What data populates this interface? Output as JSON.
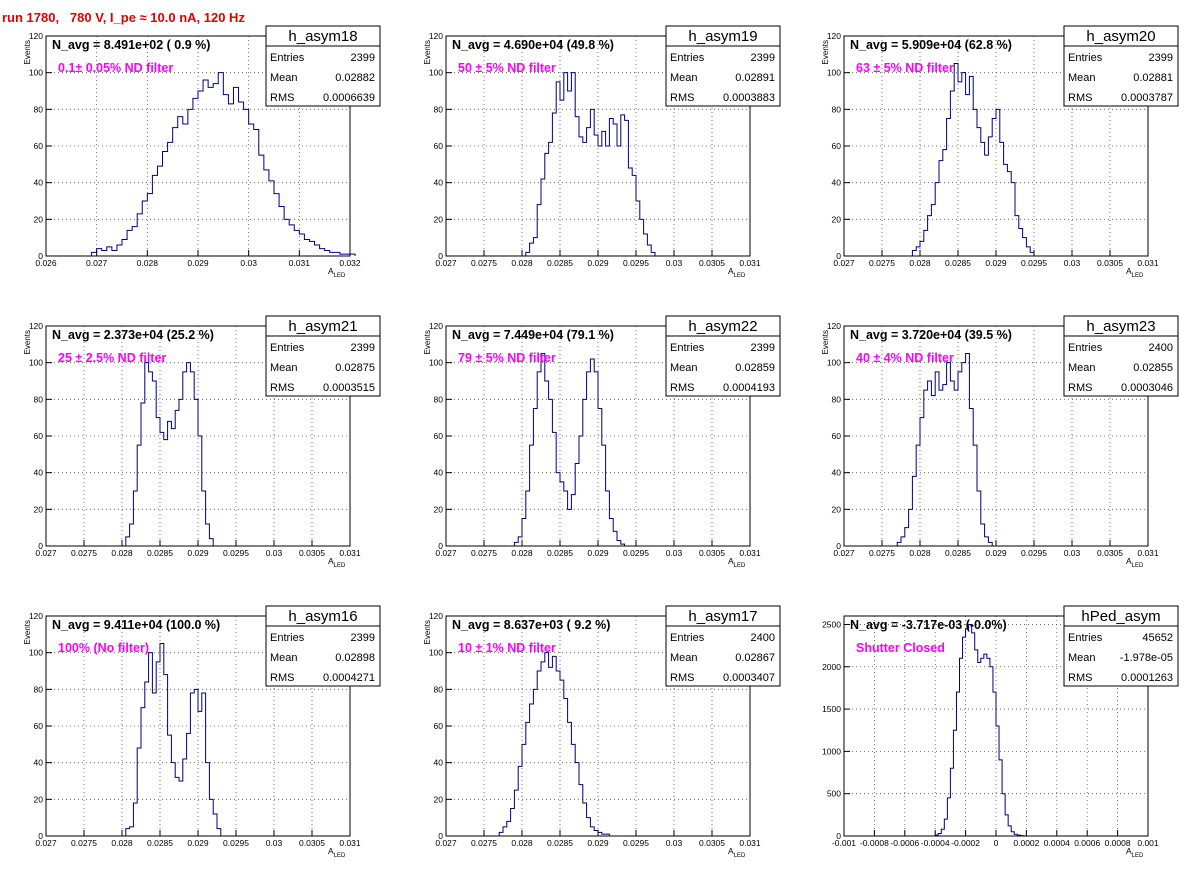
{
  "title": "run 1780,   780 V, I_pe ≈ 10.0 nA, 120 Hz",
  "colors": {
    "title": "#e00000",
    "annotation": "#ff00ff",
    "histogram": "#000080"
  },
  "chart_data": [
    {
      "type": "histogram",
      "name": "h_asym18",
      "stats": {
        "Entries": "2399",
        "Mean": "0.02882",
        "RMS": "0.0006639"
      },
      "navg": "N_avg = 8.491e+02 ( 0.9 %)",
      "note": "0.1± 0.05% ND filter",
      "xlabel": "A",
      "xlabel_sub": "LED",
      "ylabel": "Events",
      "xlim": [
        0.026,
        0.032
      ],
      "ylim": [
        0,
        120
      ],
      "xticks": [
        0.026,
        0.027,
        0.028,
        0.029,
        0.03,
        0.031,
        0.032
      ],
      "xticklabels": [
        "0.026",
        "0.027",
        "0.028",
        "0.029",
        "0.03",
        "0.031",
        "0.032"
      ],
      "yticks": [
        0,
        20,
        40,
        60,
        80,
        100,
        120
      ],
      "yticklabels": [
        "0",
        "20",
        "40",
        "60",
        "80",
        "100",
        "120"
      ],
      "x0": 0.0269,
      "bin_width": 0.0001,
      "values": [
        2,
        4,
        3,
        5,
        3,
        6,
        9,
        14,
        16,
        23,
        30,
        34,
        44,
        49,
        57,
        62,
        70,
        76,
        72,
        80,
        86,
        90,
        96,
        92,
        94,
        100,
        88,
        83,
        92,
        84,
        80,
        72,
        69,
        55,
        47,
        41,
        34,
        27,
        20,
        17,
        14,
        12,
        9,
        8,
        6,
        4,
        3,
        2,
        2,
        1,
        1,
        1
      ]
    },
    {
      "type": "histogram",
      "name": "h_asym19",
      "stats": {
        "Entries": "2399",
        "Mean": "0.02891",
        "RMS": "0.0003883"
      },
      "navg": "N_avg = 4.690e+04 (49.8 %)",
      "note": "50 ± 5% ND filter",
      "xlabel": "A",
      "xlabel_sub": "LED",
      "ylabel": "Events",
      "xlim": [
        0.027,
        0.031
      ],
      "ylim": [
        0,
        120
      ],
      "xticks": [
        0.027,
        0.0275,
        0.028,
        0.0285,
        0.029,
        0.0295,
        0.03,
        0.0305,
        0.031
      ],
      "xticklabels": [
        "0.027",
        "0.0275",
        "0.028",
        "0.0285",
        "0.029",
        "0.0295",
        "0.03",
        "0.0305",
        "0.031"
      ],
      "yticks": [
        0,
        20,
        40,
        60,
        80,
        100,
        120
      ],
      "yticklabels": [
        "0",
        "20",
        "40",
        "60",
        "80",
        "100",
        "120"
      ],
      "x0": 0.02805,
      "bin_width": 5e-05,
      "values": [
        2,
        7,
        10,
        28,
        42,
        56,
        62,
        78,
        95,
        85,
        100,
        90,
        100,
        76,
        65,
        62,
        70,
        80,
        66,
        60,
        68,
        60,
        75,
        72,
        60,
        77,
        74,
        48,
        44,
        30,
        20,
        12,
        6,
        2
      ]
    },
    {
      "type": "histogram",
      "name": "h_asym20",
      "stats": {
        "Entries": "2399",
        "Mean": "0.02881",
        "RMS": "0.0003787"
      },
      "navg": "N_avg = 5.909e+04 (62.8 %)",
      "note": "63 ± 5% ND filter",
      "xlabel": "A",
      "xlabel_sub": "LED",
      "ylabel": "Events",
      "xlim": [
        0.027,
        0.031
      ],
      "ylim": [
        0,
        120
      ],
      "xticks": [
        0.027,
        0.0275,
        0.028,
        0.0285,
        0.029,
        0.0295,
        0.03,
        0.0305,
        0.031
      ],
      "xticklabels": [
        "0.027",
        "0.0275",
        "0.028",
        "0.0285",
        "0.029",
        "0.0295",
        "0.03",
        "0.0305",
        "0.031"
      ],
      "yticks": [
        0,
        20,
        40,
        60,
        80,
        100,
        120
      ],
      "yticklabels": [
        "0",
        "20",
        "40",
        "60",
        "80",
        "100",
        "120"
      ],
      "x0": 0.0279,
      "bin_width": 5e-05,
      "values": [
        3,
        5,
        8,
        14,
        22,
        28,
        40,
        52,
        58,
        75,
        90,
        105,
        95,
        100,
        88,
        98,
        80,
        70,
        62,
        55,
        65,
        75,
        80,
        62,
        50,
        46,
        40,
        22,
        15,
        10,
        5,
        2
      ]
    },
    {
      "type": "histogram",
      "name": "h_asym21",
      "stats": {
        "Entries": "2399",
        "Mean": "0.02875",
        "RMS": "0.0003515"
      },
      "navg": "N_avg = 2.373e+04 (25.2 %)",
      "note": "25 ± 2.5% ND filter",
      "xlabel": "A",
      "xlabel_sub": "LED",
      "ylabel": "Events",
      "xlim": [
        0.027,
        0.031
      ],
      "ylim": [
        0,
        120
      ],
      "xticks": [
        0.027,
        0.0275,
        0.028,
        0.0285,
        0.029,
        0.0295,
        0.03,
        0.0305,
        0.031
      ],
      "xticklabels": [
        "0.027",
        "0.0275",
        "0.028",
        "0.0285",
        "0.029",
        "0.0295",
        "0.03",
        "0.0305",
        "0.031"
      ],
      "yticks": [
        0,
        20,
        40,
        60,
        80,
        100,
        120
      ],
      "yticklabels": [
        "0",
        "20",
        "40",
        "60",
        "80",
        "100",
        "120"
      ],
      "x0": 0.02805,
      "bin_width": 5e-05,
      "values": [
        5,
        12,
        30,
        55,
        78,
        100,
        95,
        90,
        70,
        62,
        58,
        68,
        64,
        74,
        80,
        95,
        100,
        95,
        80,
        60,
        30,
        12,
        4
      ]
    },
    {
      "type": "histogram",
      "name": "h_asym22",
      "stats": {
        "Entries": "2399",
        "Mean": "0.02859",
        "RMS": "0.0004193"
      },
      "navg": "N_avg = 7.449e+04 (79.1 %)",
      "note": "79 ± 5% ND filter",
      "xlabel": "A",
      "xlabel_sub": "LED",
      "ylabel": "Events",
      "xlim": [
        0.027,
        0.031
      ],
      "ylim": [
        0,
        120
      ],
      "xticks": [
        0.027,
        0.0275,
        0.028,
        0.0285,
        0.029,
        0.0295,
        0.03,
        0.0305,
        0.031
      ],
      "xticklabels": [
        "0.027",
        "0.0275",
        "0.028",
        "0.0285",
        "0.029",
        "0.0295",
        "0.03",
        "0.0305",
        "0.031"
      ],
      "yticks": [
        0,
        20,
        40,
        60,
        80,
        100,
        120
      ],
      "yticklabels": [
        "0",
        "20",
        "40",
        "60",
        "80",
        "100",
        "120"
      ],
      "x0": 0.0279,
      "bin_width": 5e-05,
      "values": [
        2,
        5,
        15,
        30,
        55,
        75,
        95,
        105,
        90,
        80,
        62,
        40,
        35,
        30,
        20,
        28,
        45,
        60,
        80,
        95,
        102,
        95,
        75,
        55,
        30,
        15,
        8,
        3,
        1
      ]
    },
    {
      "type": "histogram",
      "name": "h_asym23",
      "stats": {
        "Entries": "2400",
        "Mean": "0.02855",
        "RMS": "0.0003046"
      },
      "navg": "N_avg = 3.720e+04 (39.5 %)",
      "note": "40 ± 4% ND filter",
      "xlabel": "A",
      "xlabel_sub": "LED",
      "ylabel": "Events",
      "xlim": [
        0.027,
        0.031
      ],
      "ylim": [
        0,
        120
      ],
      "xticks": [
        0.027,
        0.0275,
        0.028,
        0.0285,
        0.029,
        0.0295,
        0.03,
        0.0305,
        0.031
      ],
      "xticklabels": [
        "0.027",
        "0.0275",
        "0.028",
        "0.0285",
        "0.029",
        "0.0295",
        "0.03",
        "0.0305",
        "0.031"
      ],
      "yticks": [
        0,
        20,
        40,
        60,
        80,
        100,
        120
      ],
      "yticklabels": [
        "0",
        "20",
        "40",
        "60",
        "80",
        "100",
        "120"
      ],
      "x0": 0.0277,
      "bin_width": 5e-05,
      "values": [
        2,
        5,
        10,
        20,
        38,
        55,
        70,
        85,
        90,
        82,
        95,
        85,
        88,
        100,
        90,
        85,
        95,
        100,
        105,
        75,
        55,
        30,
        12,
        5,
        2
      ]
    },
    {
      "type": "histogram",
      "name": "h_asym16",
      "stats": {
        "Entries": "2399",
        "Mean": "0.02898",
        "RMS": "0.0004271"
      },
      "navg": "N_avg = 9.411e+04 (100.0 %)",
      "note": "100% (No filter)",
      "xlabel": "A",
      "xlabel_sub": "LED",
      "ylabel": "Events",
      "xlim": [
        0.027,
        0.031
      ],
      "ylim": [
        0,
        120
      ],
      "xticks": [
        0.027,
        0.0275,
        0.028,
        0.0285,
        0.029,
        0.0295,
        0.03,
        0.0305,
        0.031
      ],
      "xticklabels": [
        "0.027",
        "0.0275",
        "0.028",
        "0.0285",
        "0.029",
        "0.0295",
        "0.03",
        "0.0305",
        "0.031"
      ],
      "yticks": [
        0,
        20,
        40,
        60,
        80,
        100,
        120
      ],
      "yticklabels": [
        "0",
        "20",
        "40",
        "60",
        "80",
        "100",
        "120"
      ],
      "x0": 0.02805,
      "bin_width": 5e-05,
      "values": [
        4,
        5,
        18,
        48,
        70,
        84,
        100,
        78,
        95,
        105,
        88,
        55,
        40,
        32,
        30,
        42,
        56,
        78,
        80,
        68,
        78,
        40,
        20,
        12,
        4
      ]
    },
    {
      "type": "histogram",
      "name": "h_asym17",
      "stats": {
        "Entries": "2400",
        "Mean": "0.02867",
        "RMS": "0.0003407"
      },
      "navg": "N_avg = 8.637e+03 ( 9.2 %)",
      "note": "10 ± 1% ND filter",
      "xlabel": "A",
      "xlabel_sub": "LED",
      "ylabel": "Events",
      "xlim": [
        0.027,
        0.031
      ],
      "ylim": [
        0,
        120
      ],
      "xticks": [
        0.027,
        0.0275,
        0.028,
        0.0285,
        0.029,
        0.0295,
        0.03,
        0.0305,
        0.031
      ],
      "xticklabels": [
        "0.027",
        "0.0275",
        "0.028",
        "0.0285",
        "0.029",
        "0.0295",
        "0.03",
        "0.0305",
        "0.031"
      ],
      "yticks": [
        0,
        20,
        40,
        60,
        80,
        100,
        120
      ],
      "yticklabels": [
        "0",
        "20",
        "40",
        "60",
        "80",
        "100",
        "120"
      ],
      "x0": 0.0277,
      "bin_width": 5e-05,
      "values": [
        2,
        5,
        8,
        15,
        25,
        38,
        50,
        62,
        72,
        80,
        90,
        95,
        100,
        92,
        98,
        90,
        85,
        75,
        62,
        50,
        40,
        28,
        18,
        10,
        5,
        3,
        2,
        1,
        1
      ]
    },
    {
      "type": "histogram",
      "name": "hPed_asym",
      "stats": {
        "Entries": "45652",
        "Mean": "-1.978e-05",
        "RMS": "0.0001263"
      },
      "navg": "N_avg = -3.717e-03 (-0.0%)",
      "note": "Shutter Closed",
      "xlabel": "A",
      "xlabel_sub": "LED",
      "ylabel": "",
      "xlim": [
        -0.001,
        0.001
      ],
      "ylim": [
        0,
        2600
      ],
      "xticks": [
        -0.001,
        -0.0008,
        -0.0006,
        -0.0004,
        -0.0002,
        0,
        0.0002,
        0.0004,
        0.0006,
        0.0008,
        0.001
      ],
      "xticklabels": [
        "-0.001",
        "-0.0008",
        "-0.0006",
        "-0.0004",
        "-0.0002",
        "0",
        "0.0002",
        "0.0004",
        "0.0006",
        "0.0008",
        "0.001"
      ],
      "yticks": [
        0,
        500,
        1000,
        1500,
        2000,
        2500
      ],
      "yticklabels": [
        "0",
        "500",
        "1000",
        "1500",
        "2000",
        "2500"
      ],
      "x0": -0.0004,
      "bin_width": 2e-05,
      "values": [
        10,
        30,
        80,
        200,
        450,
        800,
        1250,
        1700,
        2100,
        2350,
        2450,
        2500,
        2400,
        2200,
        2050,
        2100,
        2150,
        2100,
        2000,
        1700,
        1300,
        900,
        500,
        250,
        120,
        50,
        20,
        10,
        5,
        2
      ]
    }
  ]
}
